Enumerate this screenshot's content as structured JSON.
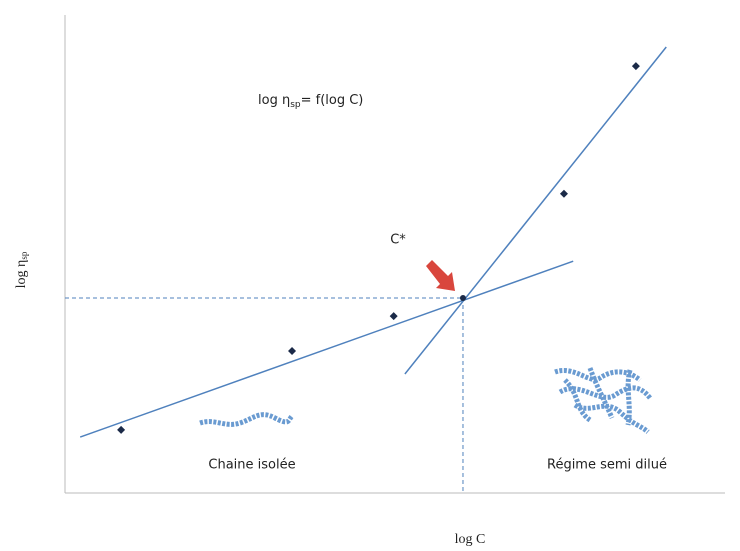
{
  "chart_data": {
    "type": "scatter",
    "title_parts": [
      "log η",
      "sp",
      "= f(log C)"
    ],
    "x_label": "log C",
    "y_label_parts": [
      "log η",
      "sp"
    ],
    "xlim": [
      0,
      10
    ],
    "ylim": [
      0,
      10
    ],
    "x": [
      0.85,
      3.44,
      4.98,
      7.56,
      8.65
    ],
    "values": [
      1.32,
      2.97,
      3.7,
      6.26,
      8.93
    ],
    "color": "#1b2a48",
    "lines": [
      {
        "x": [
          0.23,
          7.7
        ],
        "values": [
          1.17,
          4.85
        ],
        "color": "#4f81bd"
      },
      {
        "x": [
          5.15,
          9.11
        ],
        "values": [
          2.49,
          9.33
        ],
        "color": "#4f81bd"
      }
    ],
    "c_star": {
      "label": "C*",
      "x": 6.03,
      "y": 4.08
    },
    "regions": [
      "Chaine isolée",
      "Régime semi dilué"
    ]
  }
}
